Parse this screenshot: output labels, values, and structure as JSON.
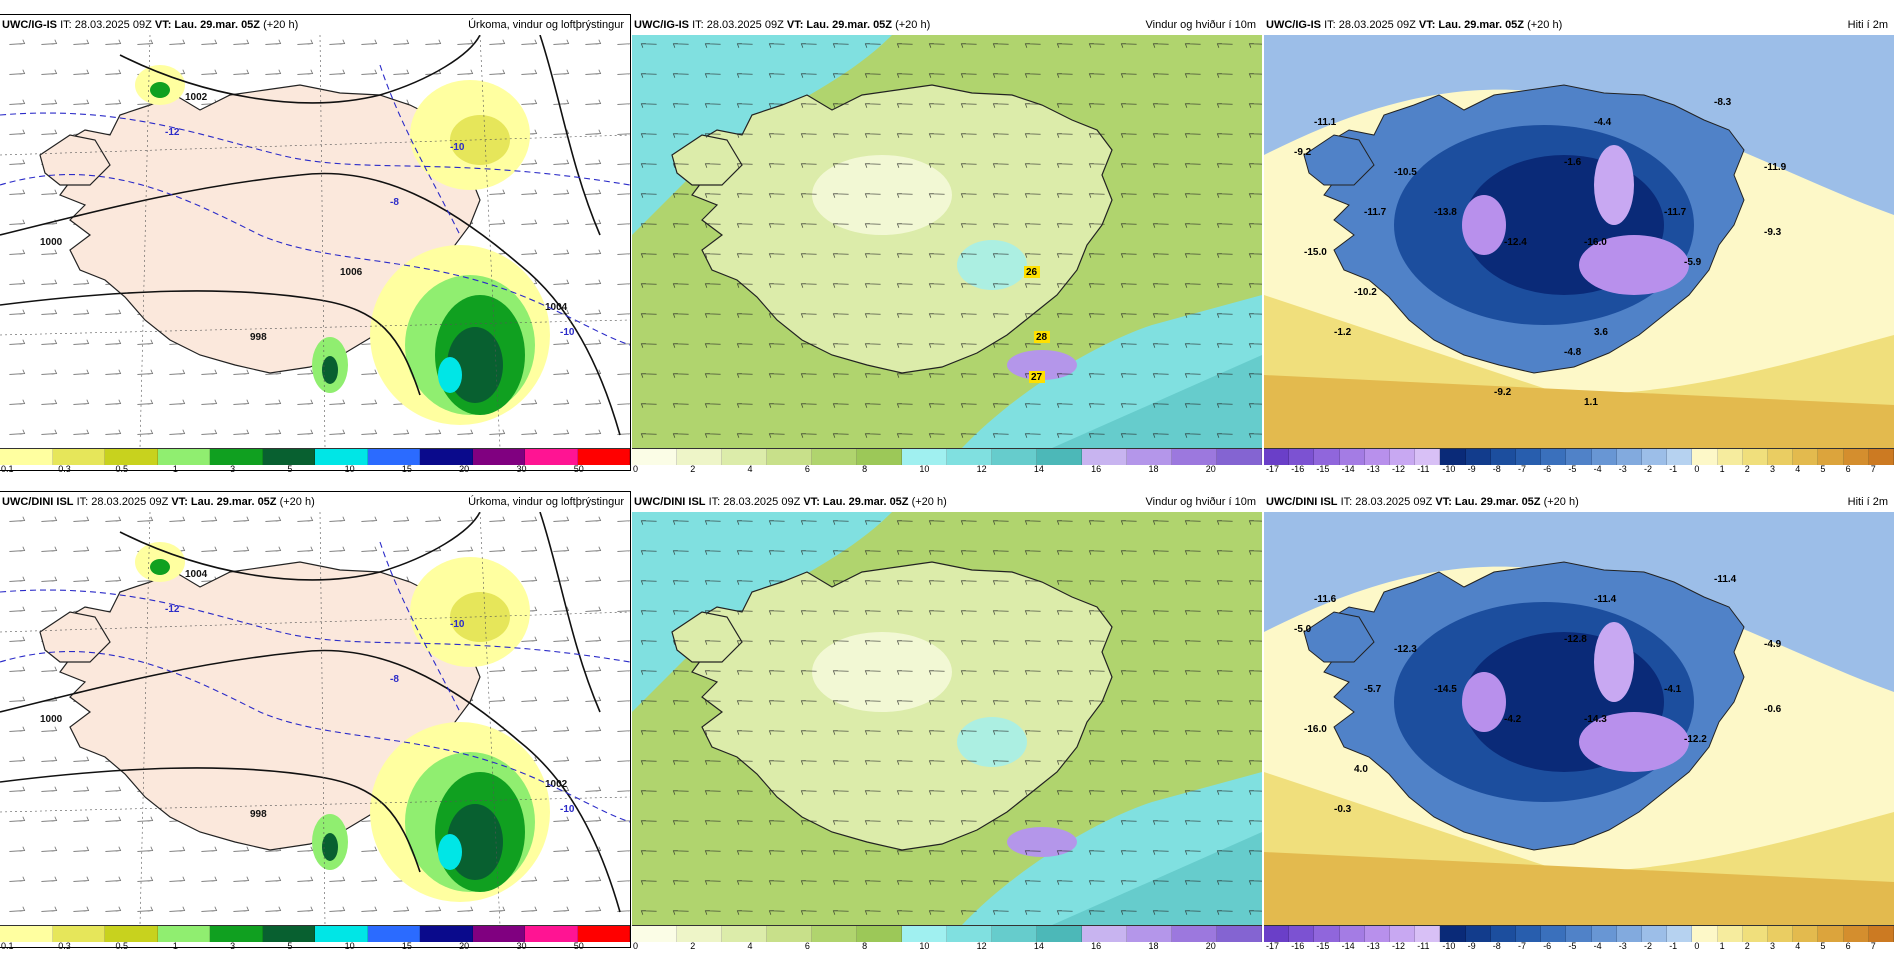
{
  "common_time": {
    "it": "IT: 28.03.2025 09Z",
    "vt_label": "VT:",
    "vt": "Lau. 29.mar. 05Z",
    "lead": "(+20 h)"
  },
  "rows": [
    {
      "model": "UWC/IG-IS",
      "panels": [
        {
          "title": "Úrkoma, vindur og loftþrýstingur",
          "isobars": [
            "1002",
            "1000",
            "998",
            "1004",
            "1006"
          ],
          "temps850": [
            "-12",
            "-10",
            "-8",
            "-10"
          ]
        },
        {
          "title": "Vindur og hviður í 10m",
          "gusts": [
            "26",
            "28",
            "27"
          ]
        },
        {
          "title": "Hiti í 2m",
          "temps": [
            "-11.1",
            "-9.2",
            "-10.5",
            "-8.3",
            "-4.4",
            "-1.6",
            "-11.7",
            "-11.9",
            "-13.8",
            "-11.7",
            "-15.0",
            "-12.4",
            "-16.0",
            "-9.3",
            "-5.9",
            "-10.2",
            "-1.2",
            "-4.8",
            "3.6",
            "-9.2",
            "1.1"
          ]
        }
      ]
    },
    {
      "model": "UWC/DINI ISL",
      "panels": [
        {
          "title": "Úrkoma, vindur og loftþrýstingur",
          "isobars": [
            "1004",
            "1000",
            "998",
            "1002"
          ],
          "temps850": [
            "-12",
            "-10",
            "-8",
            "-10"
          ]
        },
        {
          "title": "Vindur og hviður í 10m",
          "gusts": []
        },
        {
          "title": "Hiti í 2m",
          "temps": [
            "-11.6",
            "-5.0",
            "-12.3",
            "-11.4",
            "-11.4",
            "-12.8",
            "-5.7",
            "-4.9",
            "-14.5",
            "-4.1",
            "-16.0",
            "-4.2",
            "-14.3",
            "-0.6",
            "-12.2",
            "4.0",
            "-0.3"
          ]
        }
      ]
    }
  ],
  "legends": {
    "precip": {
      "labels": [
        "0.1",
        "0.3",
        "0.5",
        "1",
        "3",
        "5",
        "10",
        "15",
        "20",
        "30",
        "50"
      ],
      "colors": [
        "#ffffa0",
        "#e6e65a",
        "#c8d21e",
        "#90ee70",
        "#10a020",
        "#086030",
        "#00e6e6",
        "#2b6bff",
        "#0a0a8c",
        "#800080",
        "#ff1493",
        "#ff0000"
      ]
    },
    "wind": {
      "labels": [
        "0",
        "2",
        "4",
        "6",
        "8",
        "10",
        "12",
        "14",
        "16",
        "18",
        "20"
      ],
      "colors": [
        "#fbfde6",
        "#eef5c8",
        "#dcecaa",
        "#c8e08a",
        "#b0d46e",
        "#9cc858",
        "#a0f0f0",
        "#80e0e0",
        "#66cccc",
        "#4cb8b8",
        "#c8b4f0",
        "#b496ea",
        "#9c78de",
        "#8464d2"
      ]
    },
    "temp": {
      "labels": [
        "-17",
        "-16",
        "-15",
        "-14",
        "-13",
        "-12",
        "-11",
        "-10",
        "-9",
        "-8",
        "-7",
        "-6",
        "-5",
        "-4",
        "-3",
        "-2",
        "-1",
        "0",
        "1",
        "2",
        "3",
        "4",
        "5",
        "6",
        "7"
      ],
      "colors": [
        "#6a3fc8",
        "#7c52d2",
        "#9066dc",
        "#a47ce4",
        "#b890ec",
        "#c8a8f2",
        "#d8c0f6",
        "#0a2a78",
        "#123c8c",
        "#1c4e9e",
        "#285eae",
        "#3a70bc",
        "#5082c8",
        "#6896d4",
        "#82aade",
        "#9cbee8",
        "#b6d2f0",
        "#fdf8c8",
        "#f6ec9e",
        "#f0df7c",
        "#eacd62",
        "#e3ba4e",
        "#dca43c",
        "#d48e2e",
        "#cc7a22"
      ]
    }
  }
}
